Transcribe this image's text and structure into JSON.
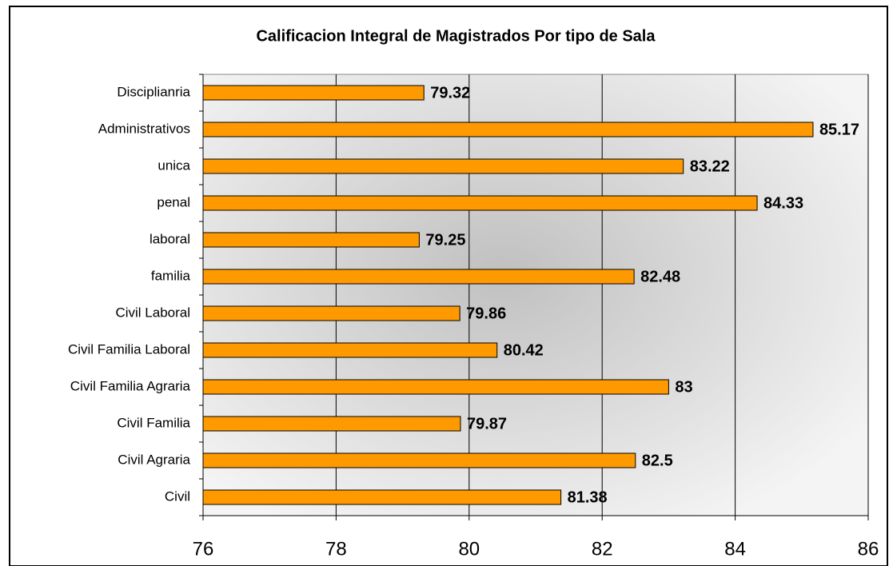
{
  "chart_data": {
    "type": "bar",
    "orientation": "horizontal",
    "title": "Calificacion Integral de Magistrados Por tipo de Sala",
    "categories": [
      "Disciplianria",
      "Administrativos",
      "unica",
      "penal",
      "laboral",
      "familia",
      "Civil Laboral",
      "Civil Familia Laboral",
      "Civil Familia Agraria",
      "Civil Familia",
      "Civil Agraria",
      "Civil"
    ],
    "values": [
      79.32,
      85.17,
      83.22,
      84.33,
      79.25,
      82.48,
      79.86,
      80.42,
      83,
      79.87,
      82.5,
      81.38
    ],
    "color": "#ff9900",
    "xlim": [
      76,
      86
    ],
    "xticks": [
      76,
      78,
      80,
      82,
      84,
      86
    ],
    "grid": true
  }
}
